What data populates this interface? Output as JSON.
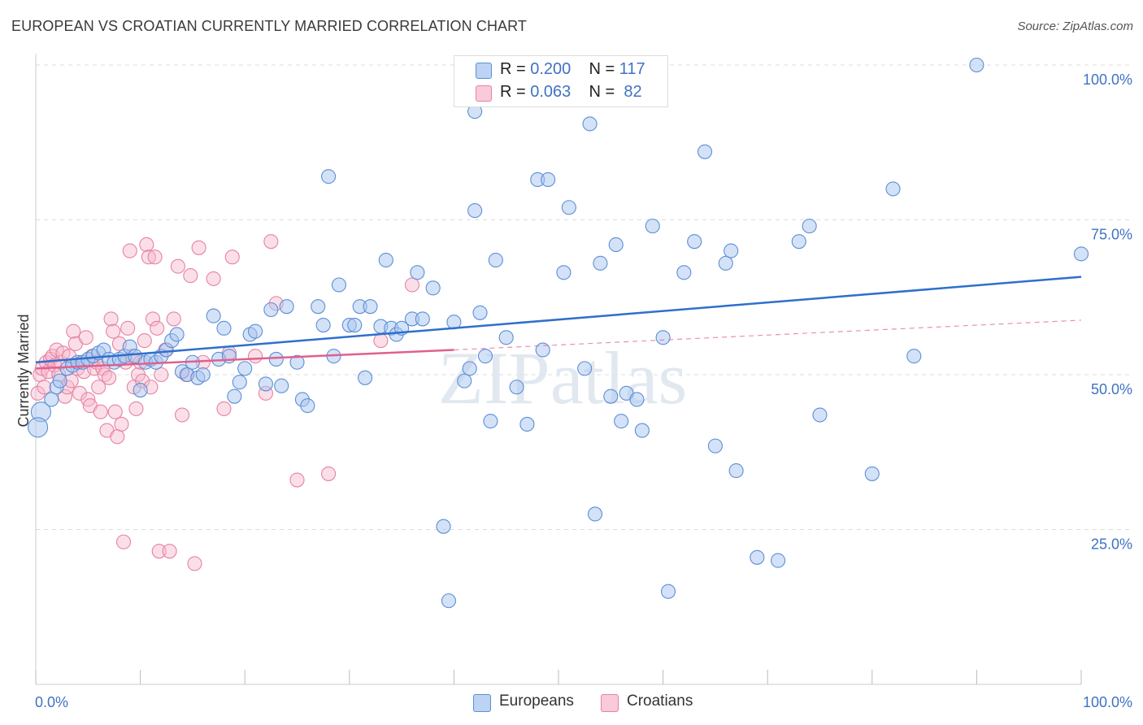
{
  "title": "EUROPEAN VS CROATIAN CURRENTLY MARRIED CORRELATION CHART",
  "source": "Source: ZipAtlas.com",
  "watermark": "ZIPatlas",
  "colors": {
    "european_fill": "#a9c6ef",
    "european_stroke": "#5b8fd6",
    "european_line": "#2f6fcc",
    "croatian_fill": "#f6b8cb",
    "croatian_stroke": "#e682a3",
    "croatian_line": "#e0608e",
    "axis_text": "#3f72c4",
    "grid": "#dddddd"
  },
  "legend_top": {
    "rows": [
      {
        "r_label": "R =",
        "r_value": "0.200",
        "n_label": "N =",
        "n_value": "117"
      },
      {
        "r_label": "R =",
        "r_value": "0.063",
        "n_label": "N =",
        "n_value": "82"
      }
    ]
  },
  "legend_bottom": {
    "items": [
      "Europeans",
      "Croatians"
    ]
  },
  "chart_data": {
    "type": "scatter",
    "title": "EUROPEAN VS CROATIAN CURRENTLY MARRIED CORRELATION CHART",
    "xlabel": "",
    "ylabel": "Currently Married",
    "xlim": [
      0,
      100
    ],
    "ylim": [
      0,
      100
    ],
    "x_tick_labels": [
      "0.0%",
      "100.0%"
    ],
    "y_tick_labels": [
      "25.0%",
      "50.0%",
      "75.0%",
      "100.0%"
    ],
    "grid": true,
    "legend_position": "bottom-center",
    "series": [
      {
        "name": "Europeans",
        "r": 0.2,
        "n": 117,
        "trend": {
          "x0": 0,
          "y0": 52.0,
          "x1": 100,
          "y1": 65.8
        },
        "points": [
          [
            0.5,
            44
          ],
          [
            0.2,
            41.5
          ],
          [
            1.5,
            46
          ],
          [
            2,
            48
          ],
          [
            2.3,
            49
          ],
          [
            3,
            51
          ],
          [
            3.5,
            51.5
          ],
          [
            4,
            52
          ],
          [
            4.5,
            52
          ],
          [
            5,
            52.5
          ],
          [
            5.5,
            53
          ],
          [
            6,
            53.5
          ],
          [
            6.5,
            54
          ],
          [
            7,
            52.5
          ],
          [
            7.5,
            52
          ],
          [
            8,
            52.5
          ],
          [
            8.5,
            53
          ],
          [
            9,
            54.5
          ],
          [
            9.5,
            53
          ],
          [
            10,
            47.5
          ],
          [
            10.5,
            52
          ],
          [
            11,
            52.5
          ],
          [
            11.5,
            52
          ],
          [
            12,
            53
          ],
          [
            12.5,
            54
          ],
          [
            13,
            55.5
          ],
          [
            13.5,
            56.5
          ],
          [
            14,
            50.5
          ],
          [
            14.5,
            50
          ],
          [
            15,
            52
          ],
          [
            15.5,
            49.5
          ],
          [
            16,
            50
          ],
          [
            17,
            59.5
          ],
          [
            17.5,
            52.5
          ],
          [
            18,
            57.5
          ],
          [
            18.5,
            53
          ],
          [
            19,
            46.5
          ],
          [
            19.5,
            48.8
          ],
          [
            20,
            51
          ],
          [
            20.5,
            56.5
          ],
          [
            21,
            57
          ],
          [
            22,
            48.5
          ],
          [
            22.5,
            60.5
          ],
          [
            23,
            52.5
          ],
          [
            23.5,
            48.2
          ],
          [
            24,
            61
          ],
          [
            25,
            52
          ],
          [
            25.5,
            46
          ],
          [
            26,
            45
          ],
          [
            27,
            61
          ],
          [
            27.5,
            58
          ],
          [
            28,
            82
          ],
          [
            28.5,
            53
          ],
          [
            29,
            64.5
          ],
          [
            30,
            58
          ],
          [
            30.5,
            58
          ],
          [
            31,
            61
          ],
          [
            31.5,
            49.5
          ],
          [
            32,
            61
          ],
          [
            33,
            57.8
          ],
          [
            33.5,
            68.5
          ],
          [
            34,
            57.5
          ],
          [
            34.5,
            56.5
          ],
          [
            35,
            57.5
          ],
          [
            36,
            59
          ],
          [
            36.5,
            66.5
          ],
          [
            37,
            59
          ],
          [
            38,
            64
          ],
          [
            39,
            25.5
          ],
          [
            39.5,
            13.5
          ],
          [
            40,
            58.5
          ],
          [
            41,
            49
          ],
          [
            41.5,
            51
          ],
          [
            42,
            76.5
          ],
          [
            42,
            92.5
          ],
          [
            42.5,
            60
          ],
          [
            43,
            53
          ],
          [
            43.5,
            42.5
          ],
          [
            44,
            68.5
          ],
          [
            45,
            56
          ],
          [
            46,
            48
          ],
          [
            47,
            42
          ],
          [
            48,
            81.5
          ],
          [
            48.5,
            54
          ],
          [
            49,
            81.5
          ],
          [
            50.5,
            66.5
          ],
          [
            51,
            77
          ],
          [
            52.5,
            51
          ],
          [
            53,
            90.5
          ],
          [
            53.5,
            27.5
          ],
          [
            54,
            68
          ],
          [
            55,
            46.5
          ],
          [
            55.5,
            71
          ],
          [
            56,
            42.5
          ],
          [
            56.5,
            47
          ],
          [
            57,
            96
          ],
          [
            57.5,
            46
          ],
          [
            58,
            41
          ],
          [
            59,
            74
          ],
          [
            60,
            56
          ],
          [
            60.5,
            15
          ],
          [
            62,
            66.5
          ],
          [
            63,
            71.5
          ],
          [
            64,
            86
          ],
          [
            65,
            38.5
          ],
          [
            66,
            68
          ],
          [
            66.5,
            70
          ],
          [
            67,
            34.5
          ],
          [
            69,
            20.5
          ],
          [
            71,
            20
          ],
          [
            73,
            71.5
          ],
          [
            74,
            74
          ],
          [
            75,
            43.5
          ],
          [
            80,
            34
          ],
          [
            82,
            80
          ],
          [
            84,
            53
          ],
          [
            90,
            100
          ],
          [
            100,
            69.5
          ]
        ]
      },
      {
        "name": "Croatians",
        "r": 0.063,
        "n": 82,
        "trend": {
          "x0": 0,
          "y0": 51.0,
          "x1": 40,
          "y1": 54.0
        },
        "extension": {
          "x0": 40,
          "y0": 54.0,
          "x1": 100,
          "y1": 58.8
        },
        "points": [
          [
            0.2,
            47
          ],
          [
            0.4,
            50
          ],
          [
            0.6,
            51
          ],
          [
            0.8,
            48
          ],
          [
            1,
            52
          ],
          [
            1.2,
            50.5
          ],
          [
            1.4,
            52.5
          ],
          [
            1.6,
            53
          ],
          [
            1.8,
            51.5
          ],
          [
            2,
            54
          ],
          [
            2.2,
            50
          ],
          [
            2.4,
            52
          ],
          [
            2.6,
            53.5
          ],
          [
            2.8,
            46.5
          ],
          [
            3,
            48
          ],
          [
            3.2,
            53
          ],
          [
            3.4,
            49
          ],
          [
            3.6,
            57
          ],
          [
            3.8,
            55
          ],
          [
            4,
            51
          ],
          [
            4.2,
            47
          ],
          [
            4.4,
            52
          ],
          [
            4.6,
            50.5
          ],
          [
            4.8,
            56
          ],
          [
            5,
            46
          ],
          [
            5.2,
            45
          ],
          [
            5.4,
            53
          ],
          [
            5.6,
            51
          ],
          [
            5.8,
            52
          ],
          [
            6,
            48
          ],
          [
            6.2,
            44
          ],
          [
            6.4,
            51
          ],
          [
            6.6,
            50
          ],
          [
            6.8,
            41
          ],
          [
            7,
            49.5
          ],
          [
            7.2,
            59
          ],
          [
            7.4,
            57
          ],
          [
            7.6,
            44
          ],
          [
            7.8,
            40
          ],
          [
            8,
            55
          ],
          [
            8.2,
            42
          ],
          [
            8.4,
            23
          ],
          [
            8.6,
            52
          ],
          [
            8.8,
            57.5
          ],
          [
            9,
            70
          ],
          [
            9.2,
            53
          ],
          [
            9.4,
            48
          ],
          [
            9.6,
            44.5
          ],
          [
            9.8,
            50
          ],
          [
            10,
            52
          ],
          [
            10.2,
            49
          ],
          [
            10.4,
            55.5
          ],
          [
            10.6,
            71
          ],
          [
            10.8,
            69
          ],
          [
            11,
            48
          ],
          [
            11.2,
            59
          ],
          [
            11.4,
            69
          ],
          [
            11.6,
            57.5
          ],
          [
            11.8,
            21.5
          ],
          [
            12,
            50
          ],
          [
            12.4,
            54
          ],
          [
            12.8,
            21.5
          ],
          [
            13.2,
            59
          ],
          [
            13.6,
            67.5
          ],
          [
            14,
            43.5
          ],
          [
            14.4,
            50
          ],
          [
            14.8,
            66
          ],
          [
            15.2,
            19.5
          ],
          [
            15.6,
            70.5
          ],
          [
            16,
            52
          ],
          [
            17,
            65.5
          ],
          [
            18,
            44.5
          ],
          [
            18.5,
            53.5
          ],
          [
            18.8,
            69
          ],
          [
            21,
            53
          ],
          [
            22,
            47
          ],
          [
            22.5,
            71.5
          ],
          [
            23,
            61.5
          ],
          [
            25,
            33
          ],
          [
            28,
            34
          ],
          [
            33,
            55.5
          ],
          [
            36,
            64.5
          ]
        ]
      }
    ]
  }
}
